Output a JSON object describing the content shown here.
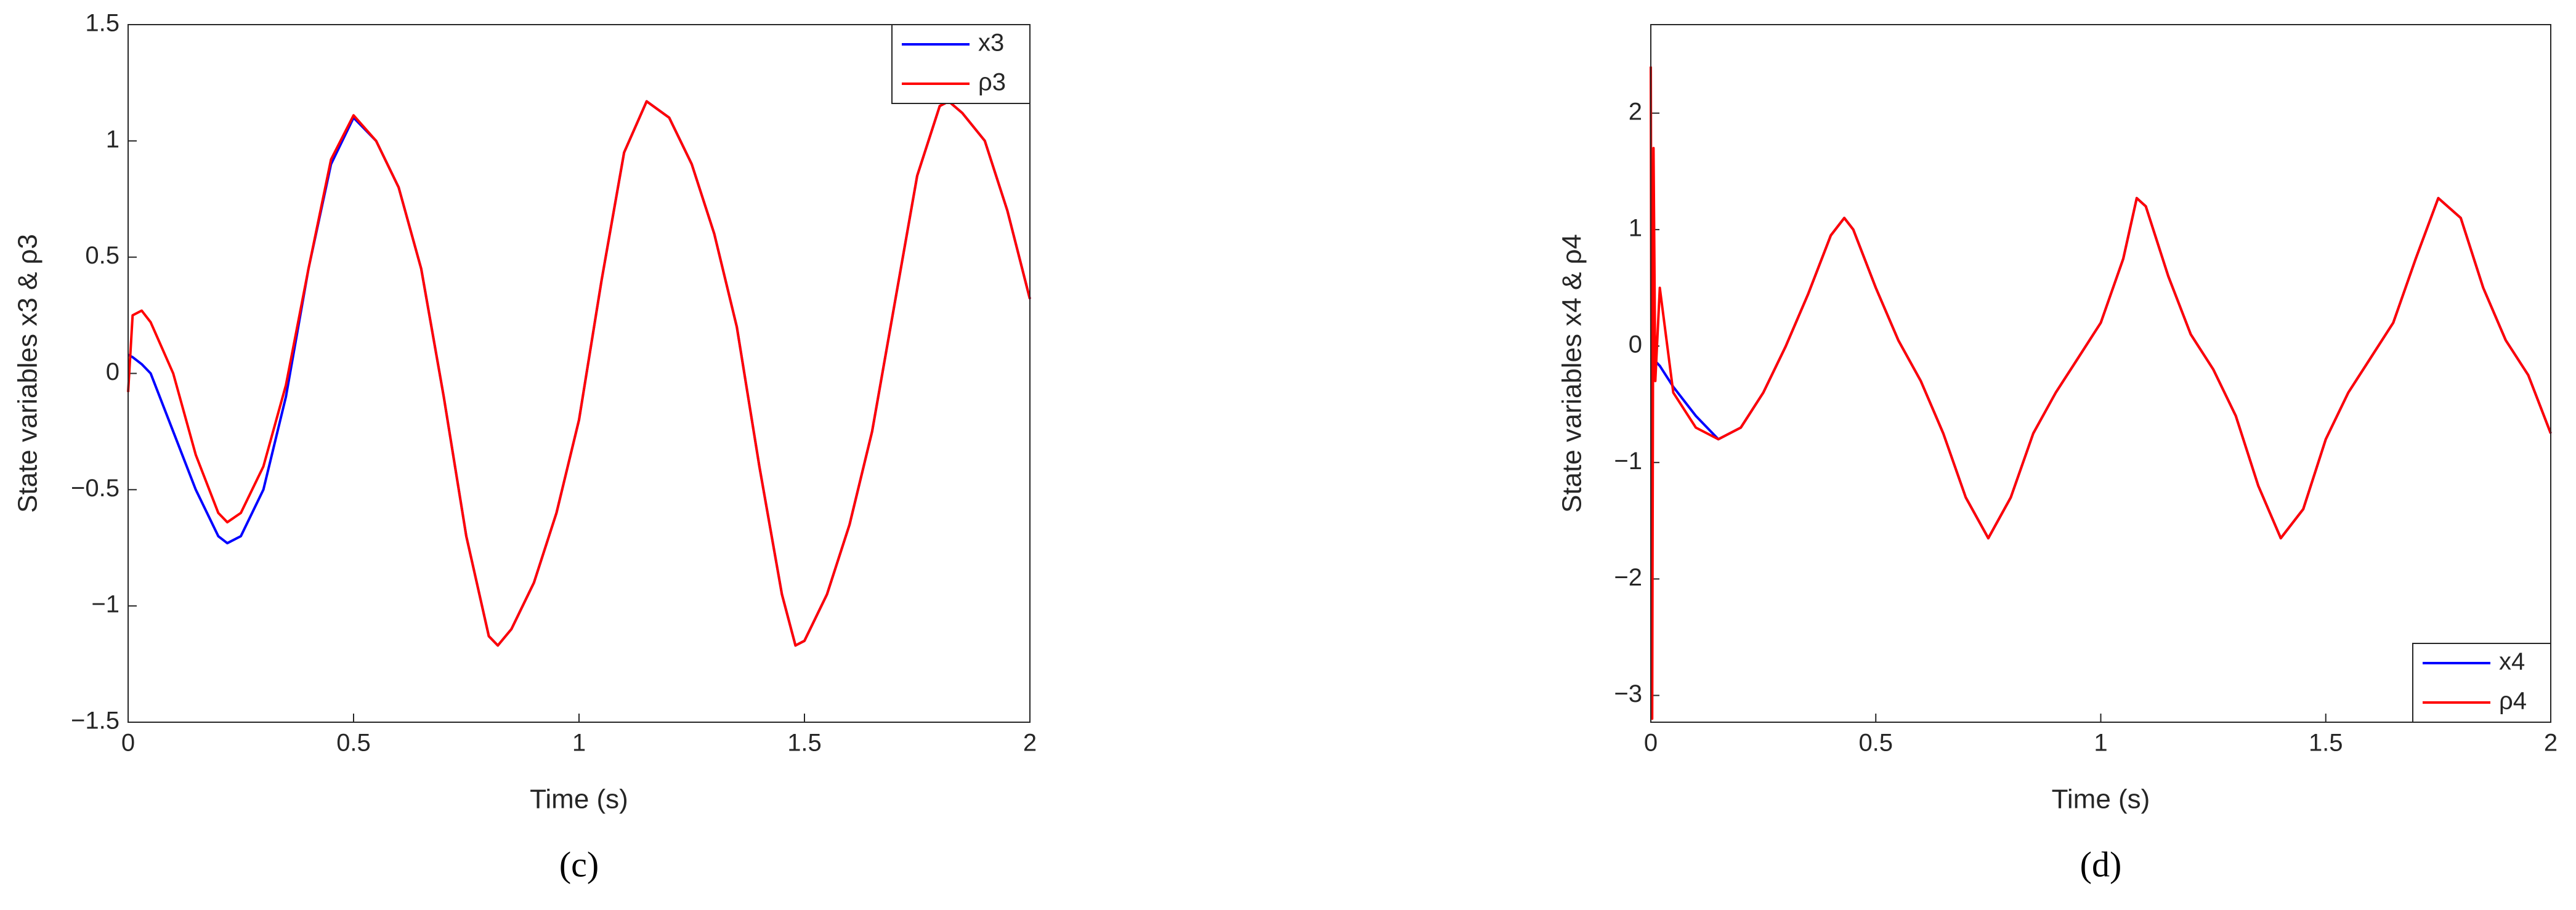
{
  "chart_data": [
    {
      "type": "line",
      "caption": "(c)",
      "xlabel": "Time (s)",
      "ylabel": "State variables x3 & ρ3",
      "xlim": [
        0,
        2
      ],
      "ylim": [
        -1.5,
        1.5
      ],
      "xticks": [
        0,
        0.5,
        1,
        1.5,
        2
      ],
      "yticks": [
        {
          "value": -1.5,
          "label": "−1.5"
        },
        {
          "value": -1,
          "label": "−1"
        },
        {
          "value": -0.5,
          "label": "−0.5"
        },
        0,
        0.5,
        1,
        1.5
      ],
      "legend": "top-right",
      "x": [
        0,
        0.01,
        0.03,
        0.05,
        0.1,
        0.15,
        0.2,
        0.22,
        0.25,
        0.3,
        0.35,
        0.4,
        0.45,
        0.5,
        0.55,
        0.6,
        0.65,
        0.7,
        0.75,
        0.8,
        0.82,
        0.85,
        0.9,
        0.95,
        1.0,
        1.05,
        1.1,
        1.15,
        1.2,
        1.25,
        1.3,
        1.35,
        1.4,
        1.45,
        1.48,
        1.5,
        1.55,
        1.6,
        1.65,
        1.7,
        1.75,
        1.8,
        1.82,
        1.85,
        1.9,
        1.95,
        2.0
      ],
      "series": [
        {
          "name": "x3",
          "color": "#0000ff",
          "values": [
            0.08,
            0.07,
            0.04,
            0.0,
            -0.25,
            -0.5,
            -0.7,
            -0.73,
            -0.7,
            -0.5,
            -0.1,
            0.45,
            0.9,
            1.1,
            1.0,
            0.8,
            0.45,
            -0.1,
            -0.7,
            -1.13,
            -1.17,
            -1.1,
            -0.9,
            -0.6,
            -0.2,
            0.4,
            0.95,
            1.17,
            1.1,
            0.9,
            0.6,
            0.2,
            -0.4,
            -0.95,
            -1.17,
            -1.15,
            -0.95,
            -0.65,
            -0.25,
            0.3,
            0.85,
            1.15,
            1.17,
            1.12,
            1.0,
            0.7,
            0.32
          ]
        },
        {
          "name": "ρ3",
          "color": "#ff0000",
          "values": [
            -0.08,
            0.25,
            0.27,
            0.22,
            0.0,
            -0.35,
            -0.6,
            -0.64,
            -0.6,
            -0.4,
            -0.05,
            0.45,
            0.92,
            1.11,
            1.0,
            0.8,
            0.45,
            -0.1,
            -0.7,
            -1.13,
            -1.17,
            -1.1,
            -0.9,
            -0.6,
            -0.2,
            0.4,
            0.95,
            1.17,
            1.1,
            0.9,
            0.6,
            0.2,
            -0.4,
            -0.95,
            -1.17,
            -1.15,
            -0.95,
            -0.65,
            -0.25,
            0.3,
            0.85,
            1.15,
            1.17,
            1.12,
            1.0,
            0.7,
            0.32
          ]
        }
      ]
    },
    {
      "type": "line",
      "caption": "(d)",
      "xlabel": "Time (s)",
      "ylabel": "State variables x4 & ρ4",
      "xlim": [
        0,
        2
      ],
      "ylim": [
        -3.23,
        2.76
      ],
      "xticks": [
        0,
        0.5,
        1,
        1.5,
        2
      ],
      "yticks": [
        {
          "value": -3,
          "label": "−3"
        },
        {
          "value": -2,
          "label": "−2"
        },
        {
          "value": -1,
          "label": "−1"
        },
        0,
        1,
        2
      ],
      "legend": "bottom-right",
      "x": [
        0,
        0.003,
        0.006,
        0.01,
        0.02,
        0.05,
        0.1,
        0.15,
        0.2,
        0.25,
        0.3,
        0.35,
        0.4,
        0.43,
        0.45,
        0.5,
        0.55,
        0.6,
        0.65,
        0.7,
        0.75,
        0.8,
        0.85,
        0.9,
        0.95,
        1.0,
        1.05,
        1.08,
        1.1,
        1.15,
        1.2,
        1.25,
        1.3,
        1.35,
        1.4,
        1.45,
        1.5,
        1.55,
        1.6,
        1.65,
        1.7,
        1.75,
        1.8,
        1.85,
        1.9,
        1.95,
        2.0
      ],
      "series": [
        {
          "name": "x4",
          "color": "#0000ff",
          "values": [
            -0.1,
            -0.11,
            -0.12,
            -0.13,
            -0.17,
            -0.35,
            -0.6,
            -0.8,
            -0.7,
            -0.4,
            0.0,
            0.45,
            0.95,
            1.1,
            1.0,
            0.5,
            0.05,
            -0.3,
            -0.75,
            -1.3,
            -1.65,
            -1.3,
            -0.75,
            -0.4,
            -0.1,
            0.2,
            0.75,
            1.27,
            1.2,
            0.6,
            0.1,
            -0.2,
            -0.6,
            -1.2,
            -1.65,
            -1.4,
            -0.8,
            -0.4,
            -0.1,
            0.2,
            0.75,
            1.27,
            1.1,
            0.5,
            0.05,
            -0.25,
            -0.75
          ]
        },
        {
          "name": "ρ4",
          "color": "#ff0000",
          "values": [
            2.4,
            -3.2,
            1.7,
            -0.3,
            0.5,
            -0.4,
            -0.7,
            -0.8,
            -0.7,
            -0.4,
            0.0,
            0.45,
            0.95,
            1.1,
            1.0,
            0.5,
            0.05,
            -0.3,
            -0.75,
            -1.3,
            -1.65,
            -1.3,
            -0.75,
            -0.4,
            -0.1,
            0.2,
            0.75,
            1.27,
            1.2,
            0.6,
            0.1,
            -0.2,
            -0.6,
            -1.2,
            -1.65,
            -1.4,
            -0.8,
            -0.4,
            -0.1,
            0.2,
            0.75,
            1.27,
            1.1,
            0.5,
            0.05,
            -0.25,
            -0.75
          ]
        }
      ]
    }
  ]
}
